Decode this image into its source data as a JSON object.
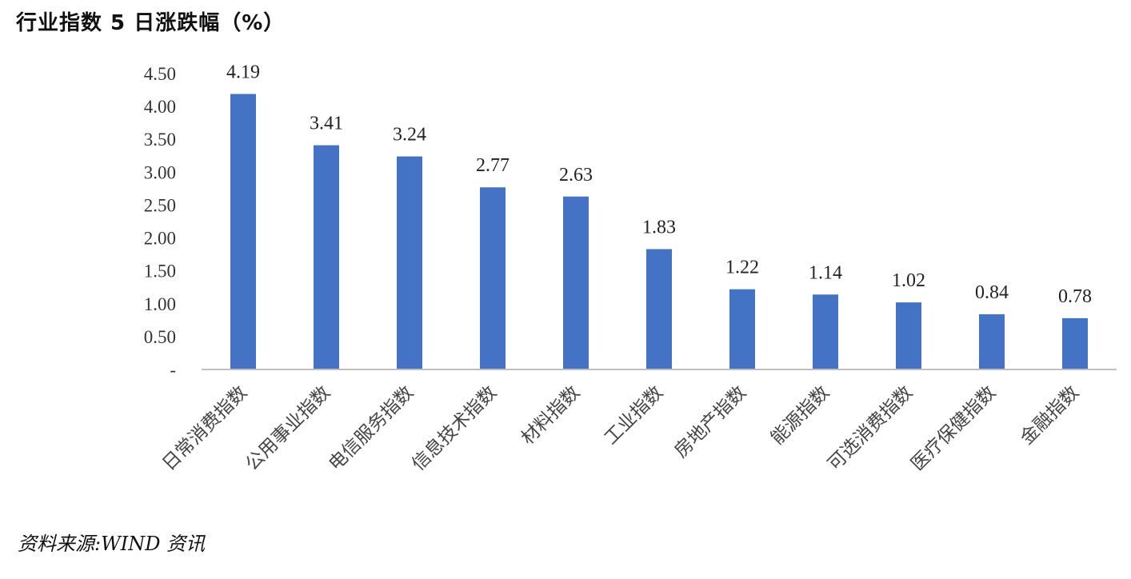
{
  "title": "行业指数 5 日涨跌幅（%）",
  "source": "资料来源:WIND 资讯",
  "chart_data": {
    "type": "bar",
    "title": "行业指数 5 日涨跌幅（%）",
    "xlabel": "",
    "ylabel": "",
    "categories": [
      "日常消费指数",
      "公用事业指数",
      "电信服务指数",
      "信息技术指数",
      "材料指数",
      "工业指数",
      "房地产指数",
      "能源指数",
      "可选消费指数",
      "医疗保健指数",
      "金融指数"
    ],
    "values": [
      4.19,
      3.41,
      3.24,
      2.77,
      2.63,
      1.83,
      1.22,
      1.14,
      1.02,
      0.84,
      0.78
    ],
    "data_labels": [
      "4.19",
      "3.41",
      "3.24",
      "2.77",
      "2.63",
      "1.83",
      "1.22",
      "1.14",
      "1.02",
      "0.84",
      "0.78"
    ],
    "ylim": [
      0,
      4.5
    ],
    "yticks": [
      0,
      0.5,
      1.0,
      1.5,
      2.0,
      2.5,
      3.0,
      3.5,
      4.0,
      4.5
    ],
    "ytick_labels": [
      "-",
      "0.50",
      "1.00",
      "1.50",
      "2.00",
      "2.50",
      "3.00",
      "3.50",
      "4.00",
      "4.50"
    ],
    "bar_color": "#4472C4",
    "axis_color": "#bfbfbf",
    "grid": false,
    "legend": "none"
  }
}
